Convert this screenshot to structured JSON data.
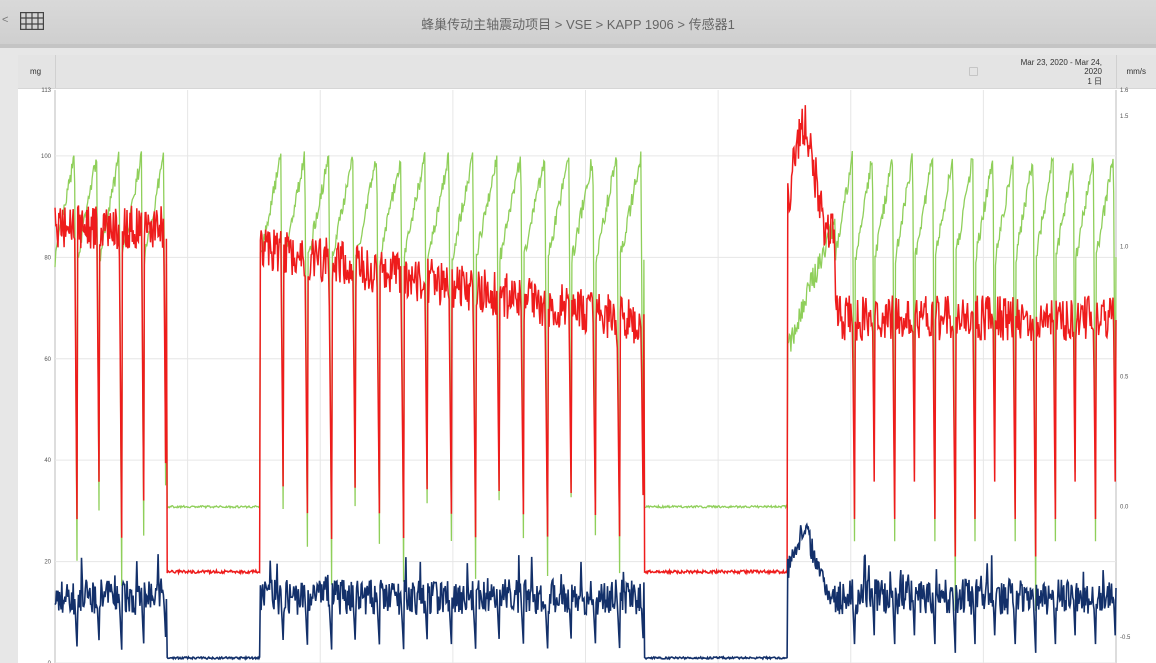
{
  "header": {
    "breadcrumb": "蜂巢传动主轴震动项目 > VSE > KAPP 1906 > 传感器1",
    "back_symbol": "<"
  },
  "chart_header": {
    "left_unit": "mg",
    "right_unit": "mm/s",
    "date_range_line1": "Mar 23, 2020 - Mar 24,",
    "date_range_line2": "2020",
    "period": "1 日"
  },
  "colors": {
    "green": "#8fcf5a",
    "red": "#ee1c1c",
    "navy": "#13306a",
    "grid": "#e6e6e6"
  },
  "chart_data": {
    "type": "line",
    "title": "",
    "xlabel": "",
    "ylabel_left": "mg",
    "ylabel_right": "mm/s",
    "ylim_left": [
      0,
      113
    ],
    "ylim_right": [
      -0.6,
      1.6
    ],
    "yticks_left": [
      "0",
      "20",
      "40",
      "60",
      "80",
      "100",
      "113"
    ],
    "yticks_right": [
      "-0.5",
      "0.0",
      "0.5",
      "1.0",
      "1.5",
      "1.6"
    ],
    "grid": true,
    "legend": "none",
    "segments": [
      {
        "x0": 0.0,
        "x1": 0.105,
        "state": "active",
        "red_base": 86,
        "green_high": 100,
        "cycles": 5
      },
      {
        "x0": 0.105,
        "x1": 0.193,
        "state": "idle",
        "red_level": 18,
        "green_level": 43,
        "navy_level": 1
      },
      {
        "x0": 0.193,
        "x1": 0.555,
        "state": "active",
        "red_base_start": 82,
        "red_base_end": 67,
        "green_high": 99,
        "cycles": 16
      },
      {
        "x0": 0.555,
        "x1": 0.69,
        "state": "idle",
        "red_level": 18,
        "green_level": 43,
        "navy_level": 1
      },
      {
        "x0": 0.69,
        "x1": 0.735,
        "state": "peak",
        "red_peak": 107,
        "navy_peak": 27
      },
      {
        "x0": 0.735,
        "x1": 1.0,
        "state": "active",
        "red_base": 68,
        "green_high": 98,
        "cycles": 14
      }
    ],
    "series": [
      {
        "color": "red",
        "axis": "left"
      },
      {
        "color": "green",
        "axis": "right"
      },
      {
        "color": "navy",
        "axis": "left"
      }
    ]
  }
}
